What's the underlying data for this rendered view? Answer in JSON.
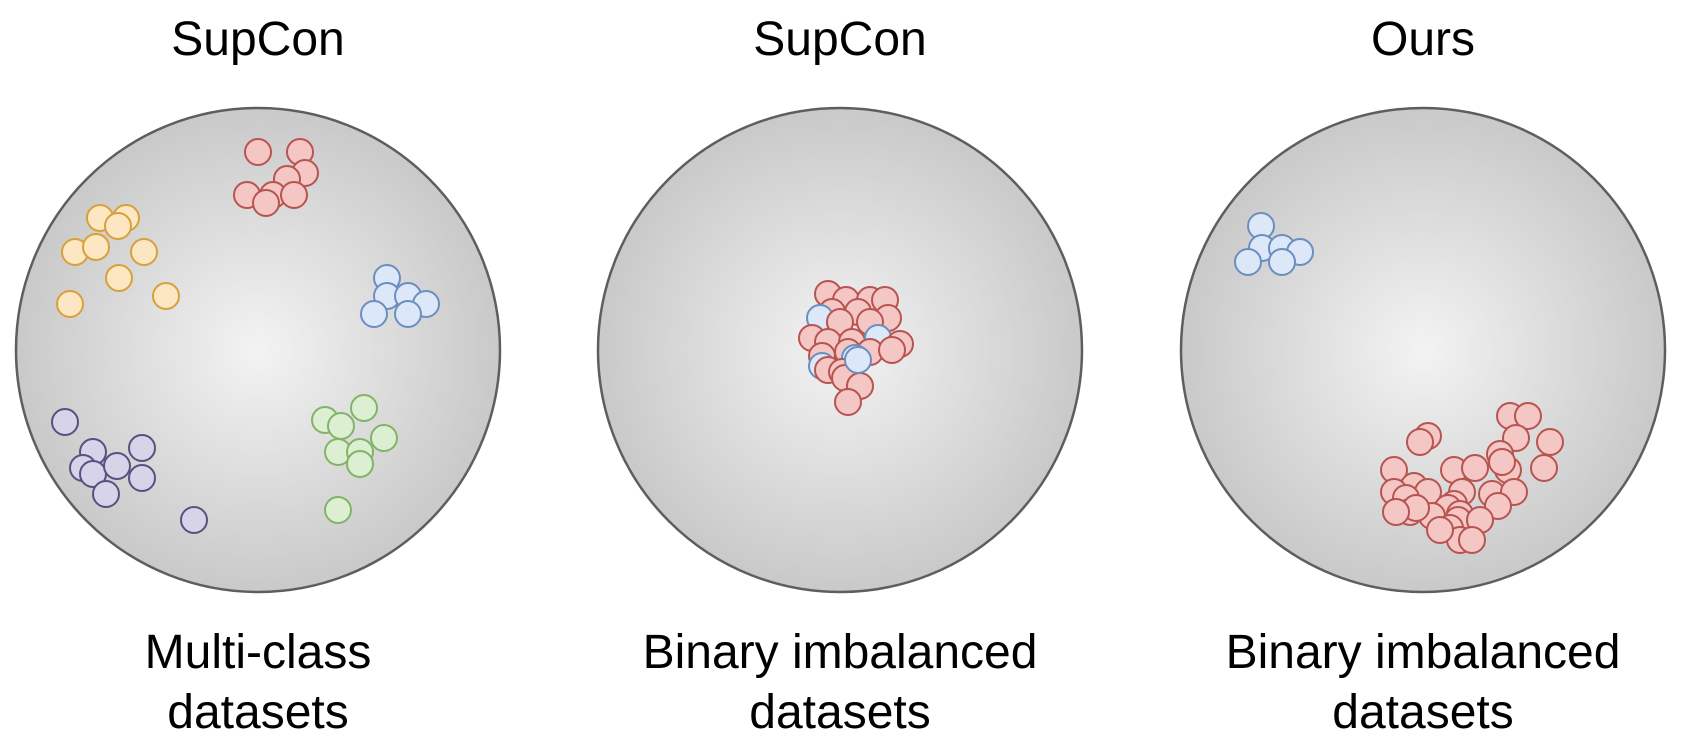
{
  "panels": [
    {
      "title": "SupCon",
      "caption_line1": "Multi-class",
      "caption_line2": "datasets"
    },
    {
      "title": "SupCon",
      "caption_line1": "Binary imbalanced",
      "caption_line2": "datasets"
    },
    {
      "title": "Ours",
      "caption_line1": "Binary imbalanced",
      "caption_line2": "datasets"
    }
  ],
  "colors": {
    "red": {
      "fill": "#f4c7c5",
      "stroke": "#b85450"
    },
    "yellow": {
      "fill": "#fde6c2",
      "stroke": "#d6a13a"
    },
    "blue": {
      "fill": "#dce8f8",
      "stroke": "#6c8ebf"
    },
    "purple": {
      "fill": "#d7d3e8",
      "stroke": "#56517e"
    },
    "green": {
      "fill": "#dcefd3",
      "stroke": "#82b366"
    },
    "sphere_center": "#f3f3f3",
    "sphere_edge": "#c9c9c9",
    "sphere_stroke": "#5e5e5e"
  }
}
